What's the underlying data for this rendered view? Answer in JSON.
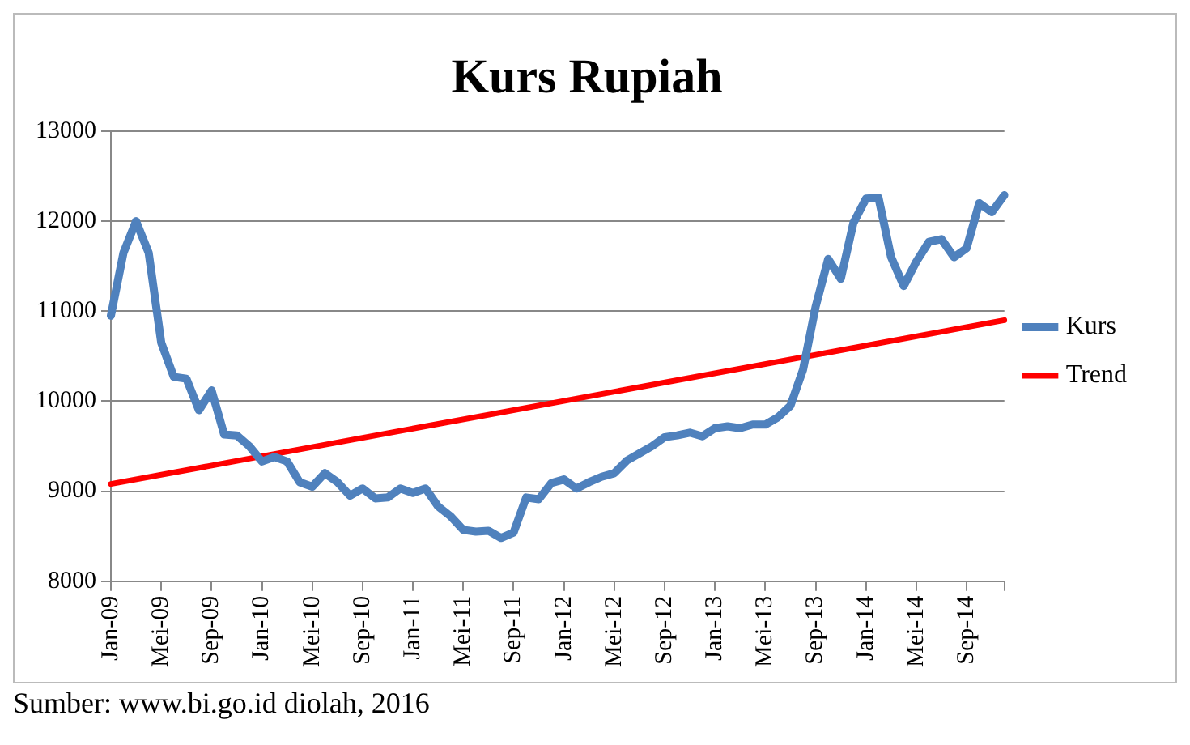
{
  "chart_data": {
    "type": "line",
    "title": "Kurs Rupiah",
    "categories": [
      "Jan-09",
      null,
      null,
      null,
      "Mei-09",
      null,
      null,
      null,
      "Sep-09",
      null,
      null,
      null,
      "Jan-10",
      null,
      null,
      null,
      "Mei-10",
      null,
      null,
      null,
      "Sep-10",
      null,
      null,
      null,
      "Jan-11",
      null,
      null,
      null,
      "Mei-11",
      null,
      null,
      null,
      "Sep-11",
      null,
      null,
      null,
      "Jan-12",
      null,
      null,
      null,
      "Mei-12",
      null,
      null,
      null,
      "Sep-12",
      null,
      null,
      null,
      "Jan-13",
      null,
      null,
      null,
      "Mei-13",
      null,
      null,
      null,
      "Sep-13",
      null,
      null,
      null,
      "Jan-14",
      null,
      null,
      null,
      "Mei-14",
      null,
      null,
      null,
      "Sep-14",
      null,
      null,
      null
    ],
    "series": [
      {
        "name": "Kurs",
        "color": "#4f81bd",
        "values": [
          10950,
          11650,
          12000,
          11650,
          10650,
          10270,
          10250,
          9900,
          10120,
          9630,
          9620,
          9500,
          9330,
          9380,
          9330,
          9100,
          9050,
          9200,
          9100,
          8950,
          9030,
          8920,
          8930,
          9030,
          8980,
          9030,
          8830,
          8720,
          8570,
          8550,
          8560,
          8480,
          8540,
          8930,
          8910,
          9090,
          9130,
          9030,
          9100,
          9160,
          9200,
          9340,
          9420,
          9500,
          9600,
          9620,
          9650,
          9610,
          9700,
          9720,
          9700,
          9740,
          9740,
          9820,
          9950,
          10350,
          11050,
          11580,
          11360,
          11980,
          12250,
          12260,
          11600,
          11280,
          11550,
          11770,
          11800,
          11600,
          11700,
          12200,
          12100,
          12290
        ]
      },
      {
        "name": "Trend",
        "color": "#ff0000",
        "values": [
          9080,
          null,
          null,
          null,
          null,
          null,
          null,
          null,
          null,
          null,
          null,
          null,
          null,
          null,
          null,
          null,
          null,
          null,
          null,
          null,
          null,
          null,
          null,
          null,
          null,
          null,
          null,
          null,
          null,
          null,
          null,
          null,
          null,
          null,
          null,
          null,
          null,
          null,
          null,
          null,
          null,
          null,
          null,
          null,
          null,
          null,
          null,
          null,
          null,
          null,
          null,
          null,
          null,
          null,
          null,
          null,
          null,
          null,
          null,
          null,
          null,
          null,
          null,
          null,
          null,
          null,
          null,
          null,
          null,
          null,
          null,
          10900
        ]
      }
    ],
    "ylim": [
      8000,
      13000
    ],
    "yticks": [
      8000,
      9000,
      10000,
      11000,
      12000,
      13000
    ],
    "grid": "y",
    "legend": "right",
    "marker": "none",
    "line_style": "solid",
    "annotations": [
      "Sumber: www.bi.go.id diolah, 2016"
    ]
  }
}
